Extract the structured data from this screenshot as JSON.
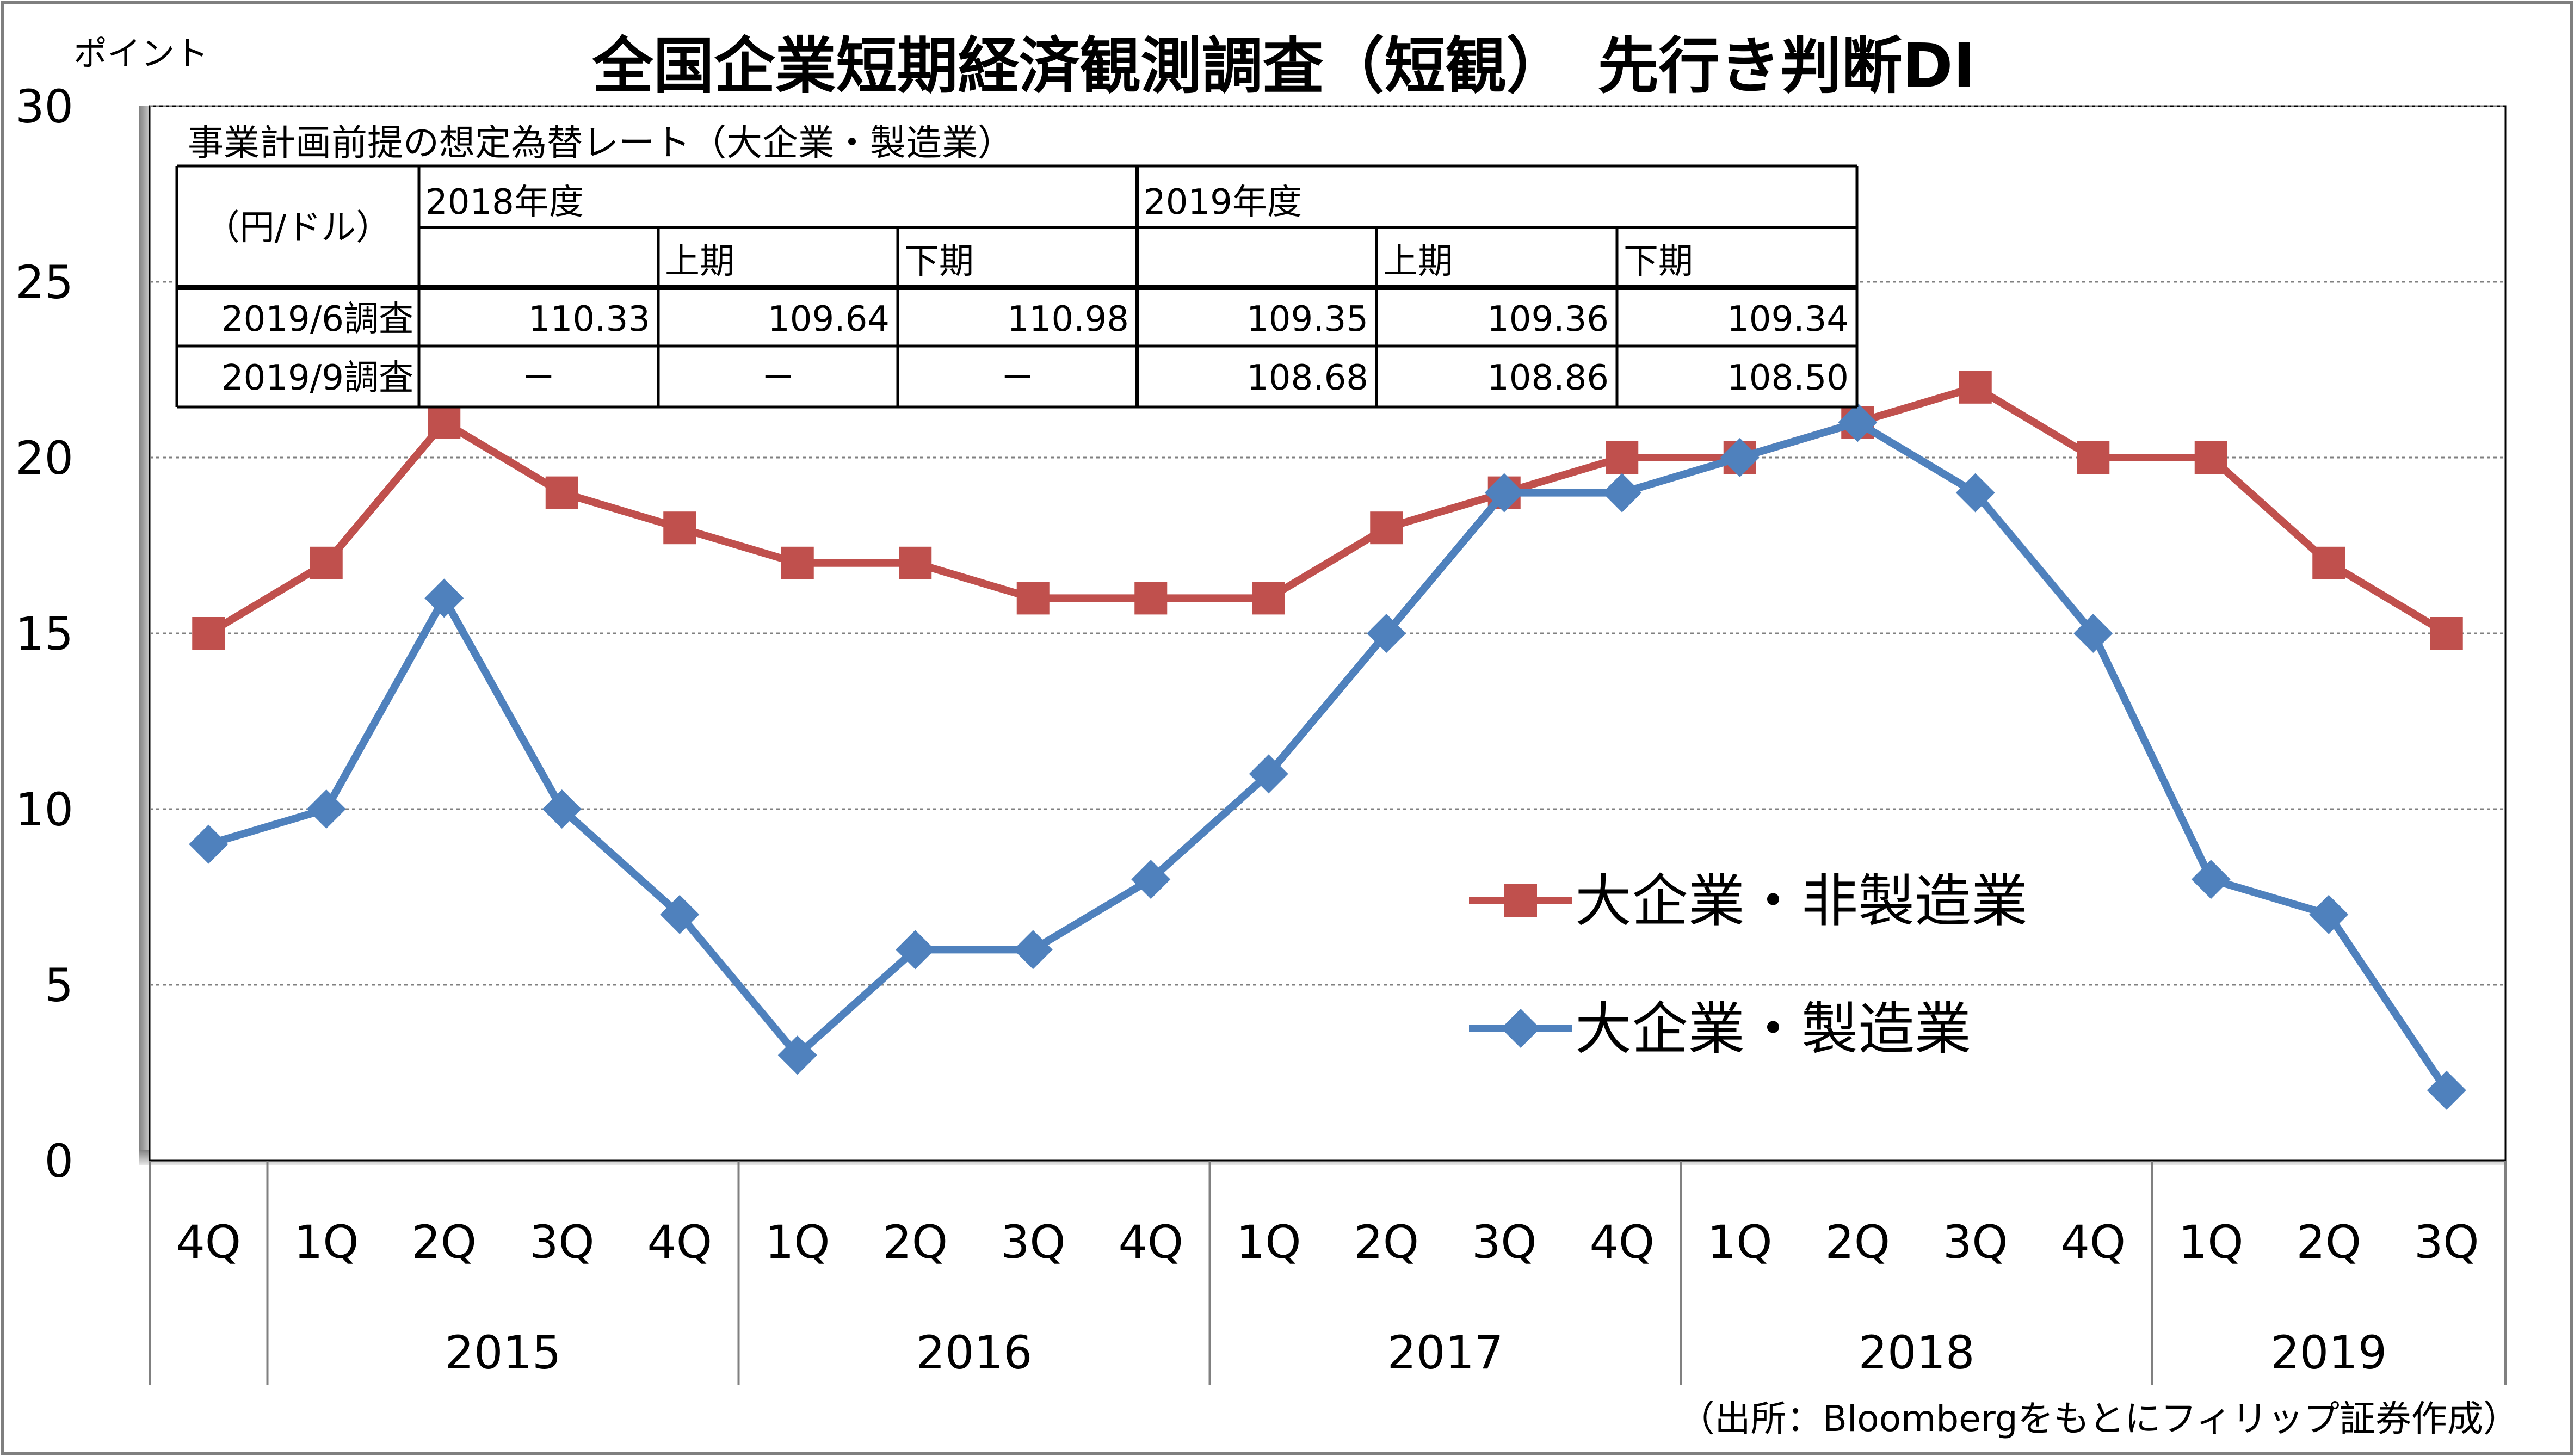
{
  "chart_data": {
    "type": "line",
    "title": "全国企業短期経済観測調査（短観）　先行き判断DI",
    "ylabel": "ポイント",
    "ylim": [
      0,
      30
    ],
    "yticks": [
      0,
      5,
      10,
      15,
      20,
      25,
      30
    ],
    "grid": true,
    "legend_position": "center-right",
    "categories": [
      "4Q",
      "1Q",
      "2Q",
      "3Q",
      "4Q",
      "1Q",
      "2Q",
      "3Q",
      "4Q",
      "1Q",
      "2Q",
      "3Q",
      "4Q",
      "1Q",
      "2Q",
      "3Q",
      "4Q",
      "1Q",
      "2Q",
      "3Q"
    ],
    "years": [
      {
        "label": "2015",
        "start": 1,
        "end": 4
      },
      {
        "label": "2016",
        "start": 5,
        "end": 8
      },
      {
        "label": "2017",
        "start": 9,
        "end": 12
      },
      {
        "label": "2018",
        "start": 13,
        "end": 16
      },
      {
        "label": "2019",
        "start": 17,
        "end": 19
      }
    ],
    "series": [
      {
        "name": "大企業・非製造業",
        "color": "#c0504d",
        "marker": "square",
        "values": [
          15,
          17,
          21,
          19,
          18,
          17,
          17,
          16,
          16,
          16,
          18,
          19,
          20,
          20,
          21,
          22,
          20,
          20,
          17,
          15
        ]
      },
      {
        "name": "大企業・製造業",
        "color": "#4f81bd",
        "marker": "diamond",
        "values": [
          9,
          10,
          16,
          10,
          7,
          3,
          6,
          6,
          8,
          11,
          15,
          19,
          19,
          20,
          21,
          19,
          15,
          8,
          7,
          2
        ]
      }
    ]
  },
  "fx_table": {
    "caption": "事業計画前提の想定為替レート（大企業・製造業）",
    "unit": "（円/ドル）",
    "year_headers": [
      "2018年度",
      "2019年度"
    ],
    "half_headers": [
      "上期",
      "下期"
    ],
    "rows": [
      {
        "label": "2019/6調査",
        "values": [
          "110.33",
          "109.64",
          "110.98",
          "109.35",
          "109.36",
          "109.34"
        ]
      },
      {
        "label": "2019/9調査",
        "values": [
          "－",
          "－",
          "－",
          "108.68",
          "108.86",
          "108.50"
        ]
      }
    ]
  },
  "source": "（出所：Bloombergをもとにフィリップ証券作成）"
}
